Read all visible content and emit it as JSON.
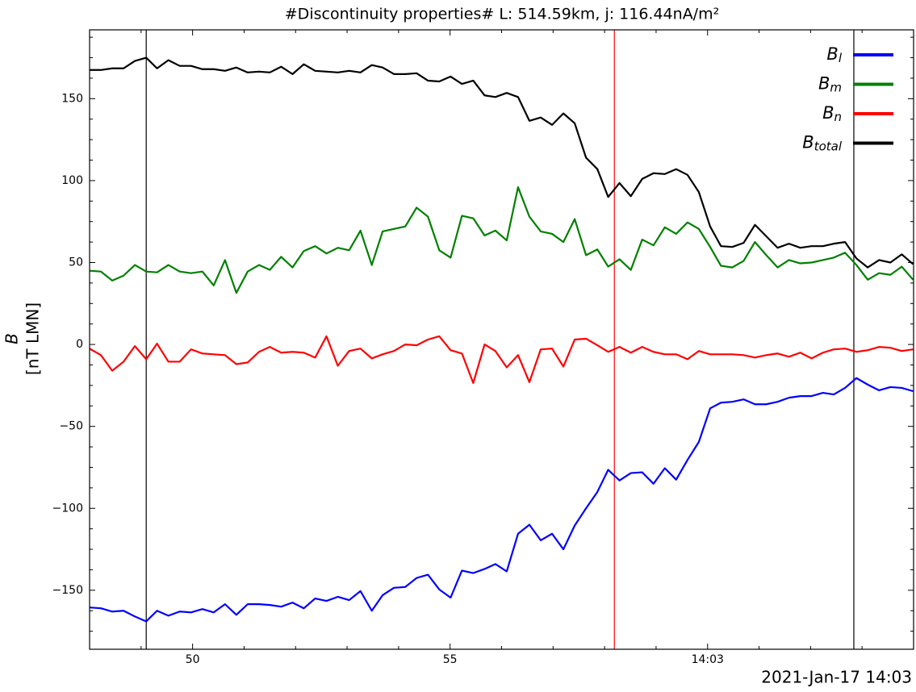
{
  "chart_data": {
    "type": "line",
    "title": "#Discontinuity properties# L: 514.59km, j: 116.44nA/m²",
    "ylabel": "B",
    "ylabel_unit": "[nT LMN]",
    "x_offset_label": "2021-Jan-17 14:03",
    "x": [
      48.0,
      48.22,
      48.44,
      48.66,
      48.88,
      49.1,
      49.31,
      49.53,
      49.75,
      49.97,
      50.19,
      50.41,
      50.63,
      50.85,
      51.07,
      51.29,
      51.5,
      51.72,
      51.94,
      52.16,
      52.38,
      52.6,
      52.82,
      53.04,
      53.26,
      53.48,
      53.69,
      53.91,
      54.13,
      54.35,
      54.57,
      54.79,
      55.01,
      55.23,
      55.45,
      55.67,
      55.88,
      56.1,
      56.32,
      56.54,
      56.76,
      56.98,
      57.2,
      57.42,
      57.64,
      57.86,
      58.07,
      58.29,
      58.51,
      58.73,
      58.95,
      59.17,
      59.39,
      59.61,
      59.83,
      60.05,
      60.26,
      60.48,
      60.7,
      60.92,
      61.14,
      61.36,
      61.58,
      61.8,
      62.02,
      62.24,
      62.45,
      62.67,
      62.89,
      63.11,
      63.33,
      63.55,
      63.77,
      63.99
    ],
    "series": [
      {
        "name": "Bl",
        "color": "#0000ff",
        "values": [
          -160.5,
          -161,
          -163,
          -162.5,
          -166,
          -169,
          -162.5,
          -165.5,
          -163,
          -163.5,
          -161.5,
          -163.5,
          -158.5,
          -165,
          -158.5,
          -158.5,
          -159,
          -160,
          -157.5,
          -161,
          -155,
          -156.5,
          -154,
          -156,
          -150.5,
          -162.5,
          -153,
          -148.5,
          -148,
          -142.5,
          -140.5,
          -149.5,
          -154.5,
          -138,
          -139.5,
          -137,
          -134,
          -138.5,
          -115.5,
          -110,
          -119.5,
          -115.5,
          -125,
          -110.5,
          -100,
          -90,
          -76.5,
          -83,
          -78.5,
          -78,
          -85,
          -75.5,
          -82.5,
          -70.5,
          -59.5,
          -39,
          -35.5,
          -35,
          -33.5,
          -36.5,
          -36.5,
          -35,
          -32.5,
          -31.5,
          -31.5,
          -29.5,
          -30.5,
          -26.5,
          -20.5,
          -24.5,
          -28,
          -26,
          -26.5,
          -28.5
        ]
      },
      {
        "name": "Bm",
        "color": "#008000",
        "values": [
          45,
          44.5,
          39,
          42,
          48.5,
          44.5,
          44,
          48.5,
          44.5,
          43.5,
          44.5,
          36,
          51.5,
          31.5,
          44.5,
          48.5,
          45.5,
          53.5,
          47,
          57,
          60,
          55.5,
          59,
          57.5,
          69.5,
          48.5,
          69,
          70.5,
          72,
          83.5,
          78,
          57.5,
          53,
          78.5,
          77,
          66.5,
          69.5,
          63.5,
          96,
          78,
          69,
          67.5,
          62.5,
          76.5,
          54.5,
          58,
          47.5,
          52,
          45.5,
          64,
          60.5,
          71.5,
          67.5,
          74.5,
          70.5,
          59.5,
          48,
          47,
          51,
          62.5,
          54.5,
          47,
          51.5,
          49.5,
          50,
          51.5,
          53,
          56,
          48.5,
          39.5,
          43.5,
          42.5,
          47.5,
          39.5
        ]
      },
      {
        "name": "Bn",
        "color": "#ff0000",
        "values": [
          -2.5,
          -6.5,
          -16,
          -10.5,
          -1,
          -9,
          0.5,
          -10.5,
          -10.5,
          -3,
          -5.5,
          -6,
          -6.5,
          -12,
          -11,
          -4.5,
          -1.5,
          -5,
          -4.5,
          -5,
          -8,
          5,
          -13,
          -4,
          -2.5,
          -8.5,
          -6,
          -4,
          0,
          -0.5,
          3,
          5,
          -3.5,
          -5.5,
          -23.5,
          0,
          -4,
          -14,
          -6.5,
          -23,
          -3,
          -2.5,
          -13.5,
          3,
          3.5,
          -0.5,
          -4.5,
          -1.5,
          -5,
          -1.5,
          -4.5,
          -6,
          -6,
          -9,
          -4,
          -6,
          -6,
          -6,
          -6.5,
          -8,
          -6.5,
          -5.5,
          -7.5,
          -5,
          -8.5,
          -5,
          -3,
          -2.5,
          -4.5,
          -3.5,
          -1.5,
          -2,
          -4,
          -3
        ]
      },
      {
        "name": "Btotal",
        "color": "#000000",
        "values": [
          167.5,
          167.5,
          168.5,
          168.5,
          173,
          175,
          168.5,
          173.5,
          170,
          170,
          168,
          168,
          167,
          169,
          166,
          166.5,
          166,
          169.5,
          165,
          171,
          167,
          166.5,
          166,
          167,
          166,
          170.5,
          169,
          165,
          165,
          165.5,
          161,
          160.5,
          163.5,
          159,
          161,
          152,
          151,
          153.5,
          151,
          136.5,
          138.5,
          134,
          141,
          135,
          114,
          107,
          90,
          98.5,
          90.5,
          101,
          104.5,
          104,
          107,
          103.5,
          93,
          72,
          60,
          59.5,
          62,
          73,
          66,
          59,
          61.5,
          59,
          60,
          60,
          61.5,
          62.5,
          52.5,
          47,
          51.5,
          50,
          55,
          49
        ]
      }
    ],
    "vlines": [
      {
        "x": 49.1,
        "color": "#000000"
      },
      {
        "x": 58.19,
        "color": "#ff0000"
      },
      {
        "x": 62.84,
        "color": "#000000"
      }
    ],
    "xlim": [
      48,
      64
    ],
    "xticks": [
      50,
      55,
      {
        "value": 60,
        "label": "14:03"
      }
    ],
    "xticks_minor": [
      49,
      51,
      52,
      53,
      54,
      56,
      57,
      58,
      59,
      61,
      62,
      63
    ],
    "ylim": [
      -186,
      192
    ],
    "yticks": [
      {
        "value": -150,
        "label": "−150"
      },
      {
        "value": -100,
        "label": "−100"
      },
      {
        "value": -50,
        "label": "−50"
      },
      0,
      50,
      100,
      150
    ],
    "yticks_minor": [
      -175,
      -162.5,
      -137.5,
      -125,
      -112.5,
      -87.5,
      -75,
      -62.5,
      -37.5,
      -25,
      -12.5,
      12.5,
      25,
      37.5,
      62.5,
      75,
      87.5,
      112.5,
      125,
      137.5,
      162.5,
      175,
      187.5
    ],
    "grid": false,
    "legend": "upper right"
  }
}
